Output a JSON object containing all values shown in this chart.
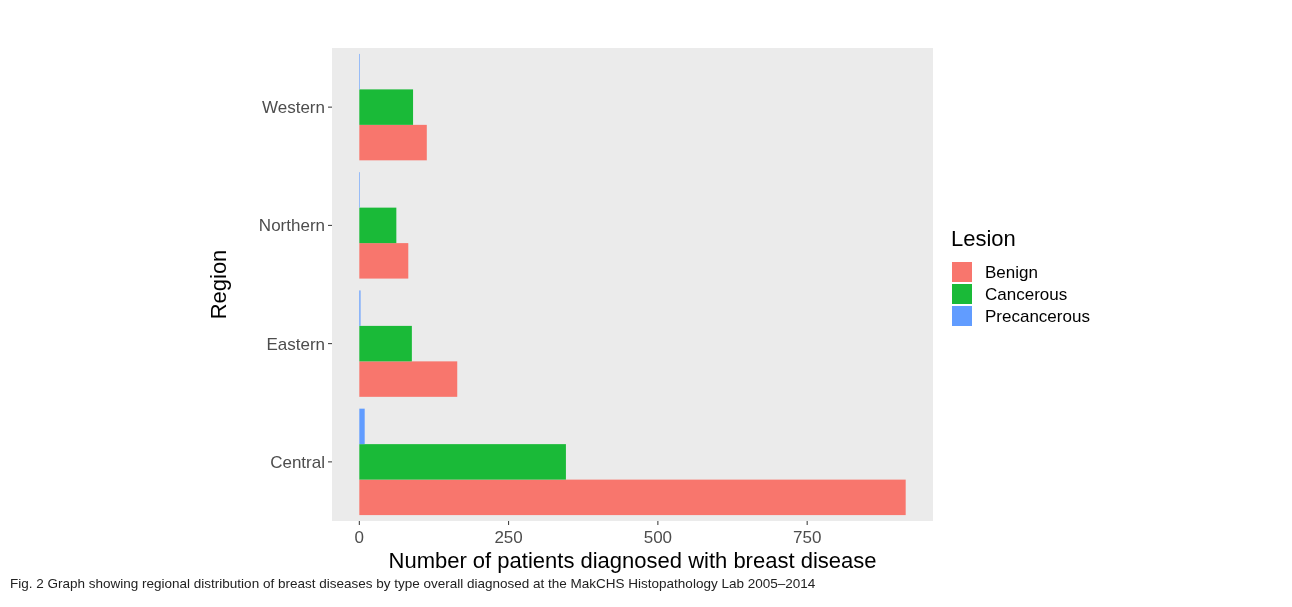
{
  "chart_data": {
    "type": "bar",
    "orientation": "horizontal",
    "xlabel": "Number of patients diagnosed with breast disease",
    "ylabel": "Region",
    "legend_title": "Lesion",
    "legend": "right",
    "grid": false,
    "categories": [
      "Western",
      "Northern",
      "Eastern",
      "Central"
    ],
    "series": [
      {
        "name": "Benign",
        "color": "#f8766d",
        "values": [
          113,
          82,
          164,
          915
        ]
      },
      {
        "name": "Cancerous",
        "color": "#1aba38",
        "values": [
          90,
          62,
          88,
          346
        ]
      },
      {
        "name": "Precancerous",
        "color": "#619cff",
        "values": [
          1,
          1,
          2,
          9
        ]
      }
    ],
    "xlim": [
      -45.75,
      960.75
    ],
    "xticks": [
      0,
      250,
      500,
      750
    ],
    "annotations": [
      "Fig. 2 Graph showing regional distribution of breast diseases by type overall diagnosed at the MakCHS Histopathology Lab 2005–2014"
    ]
  }
}
